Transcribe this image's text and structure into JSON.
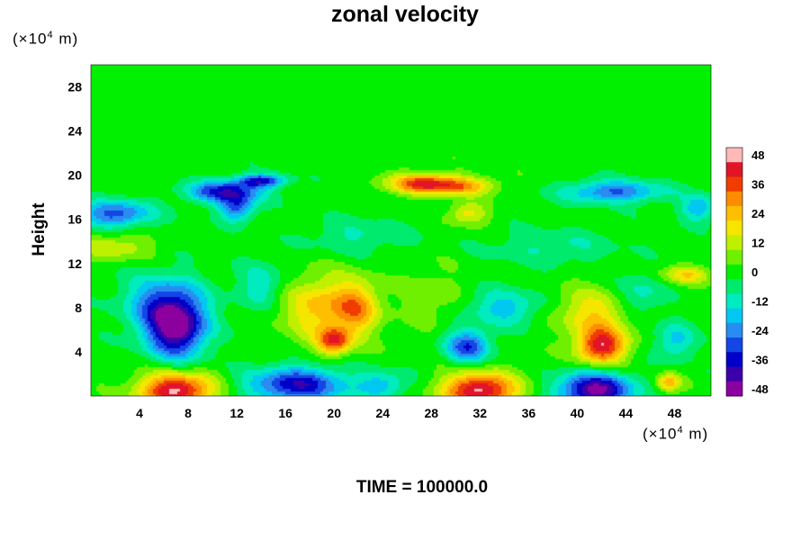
{
  "chart_data": {
    "type": "heatmap",
    "title": "zonal velocity",
    "ylabel": "Height",
    "x_unit": {
      "prefix": "(×10",
      "exp": "4",
      "suffix": " m)"
    },
    "y_unit": {
      "prefix": "(×10",
      "exp": "4",
      "suffix": " m)"
    },
    "xlim": [
      0,
      51
    ],
    "ylim": [
      0,
      30
    ],
    "x_ticks": [
      4,
      8,
      12,
      16,
      20,
      24,
      28,
      32,
      36,
      40,
      44,
      48
    ],
    "y_ticks": [
      4,
      8,
      12,
      16,
      20,
      24,
      28
    ],
    "colorbar": {
      "range": [
        -48,
        48
      ],
      "step": 6,
      "tick_labels": [
        48,
        36,
        24,
        12,
        0,
        -12,
        -24,
        -36,
        -48
      ]
    },
    "background_value": 0,
    "features": [
      {
        "x": 7,
        "y": 0.5,
        "value": 48,
        "sx": 3.0,
        "sy": 1.6
      },
      {
        "x": 32,
        "y": 0.5,
        "value": 48,
        "sx": 3.0,
        "sy": 1.6
      },
      {
        "x": 41.5,
        "y": 0.5,
        "value": -48,
        "sx": 3.0,
        "sy": 1.6
      },
      {
        "x": 17,
        "y": 1,
        "value": -38,
        "sx": 4.0,
        "sy": 1.6
      },
      {
        "x": 24,
        "y": 1,
        "value": -18,
        "sx": 2.0,
        "sy": 1.2
      },
      {
        "x": 7,
        "y": 6,
        "value": -46,
        "sx": 2.4,
        "sy": 2.6
      },
      {
        "x": 6,
        "y": 8.5,
        "value": -26,
        "sx": 3.2,
        "sy": 2.5
      },
      {
        "x": 19,
        "y": 8,
        "value": 24,
        "sx": 3.2,
        "sy": 2.8
      },
      {
        "x": 20,
        "y": 5,
        "value": 34,
        "sx": 1.4,
        "sy": 1.2
      },
      {
        "x": 22,
        "y": 8,
        "value": 22,
        "sx": 1.8,
        "sy": 2.4
      },
      {
        "x": 28,
        "y": 9,
        "value": 8,
        "sx": 2.5,
        "sy": 2.5
      },
      {
        "x": 31,
        "y": 4.5,
        "value": -32,
        "sx": 1.8,
        "sy": 1.5
      },
      {
        "x": 42,
        "y": 4.5,
        "value": 42,
        "sx": 2.0,
        "sy": 1.6
      },
      {
        "x": 41.5,
        "y": 7.5,
        "value": 20,
        "sx": 3.2,
        "sy": 2.2
      },
      {
        "x": 48,
        "y": 5,
        "value": -18,
        "sx": 1.6,
        "sy": 1.6
      },
      {
        "x": 47.5,
        "y": 1.2,
        "value": 26,
        "sx": 1.0,
        "sy": 0.8
      },
      {
        "x": 2,
        "y": 16.5,
        "value": -30,
        "sx": 3.0,
        "sy": 1.2
      },
      {
        "x": 11,
        "y": 18.5,
        "value": -36,
        "sx": 3.0,
        "sy": 1.0
      },
      {
        "x": 12,
        "y": 17,
        "value": -28,
        "sx": 1.4,
        "sy": 1.2
      },
      {
        "x": 14,
        "y": 19.5,
        "value": -34,
        "sx": 2.0,
        "sy": 0.6
      },
      {
        "x": 27.5,
        "y": 19.2,
        "value": 40,
        "sx": 3.0,
        "sy": 0.9
      },
      {
        "x": 31,
        "y": 19,
        "value": 20,
        "sx": 2.5,
        "sy": 0.8
      },
      {
        "x": 31,
        "y": 16.5,
        "value": 18,
        "sx": 1.6,
        "sy": 1.0
      },
      {
        "x": 43,
        "y": 18.5,
        "value": -28,
        "sx": 4.0,
        "sy": 1.0
      },
      {
        "x": 50,
        "y": 17,
        "value": -20,
        "sx": 1.5,
        "sy": 1.2
      },
      {
        "x": 49,
        "y": 11,
        "value": 20,
        "sx": 2.0,
        "sy": 0.8
      },
      {
        "x": 2,
        "y": 13.5,
        "value": 14,
        "sx": 3.0,
        "sy": 1.2
      },
      {
        "x": 22,
        "y": 14.5,
        "value": -10,
        "sx": 4.0,
        "sy": 1.5
      },
      {
        "x": 38,
        "y": 13.5,
        "value": -10,
        "sx": 5.0,
        "sy": 1.5
      },
      {
        "x": 34,
        "y": 8,
        "value": -18,
        "sx": 3.0,
        "sy": 1.6
      },
      {
        "x": 14,
        "y": 10,
        "value": -14,
        "sx": 2.0,
        "sy": 2.0
      },
      {
        "x": 45,
        "y": 9,
        "value": -14,
        "sx": 2.0,
        "sy": 2.0
      }
    ]
  }
}
